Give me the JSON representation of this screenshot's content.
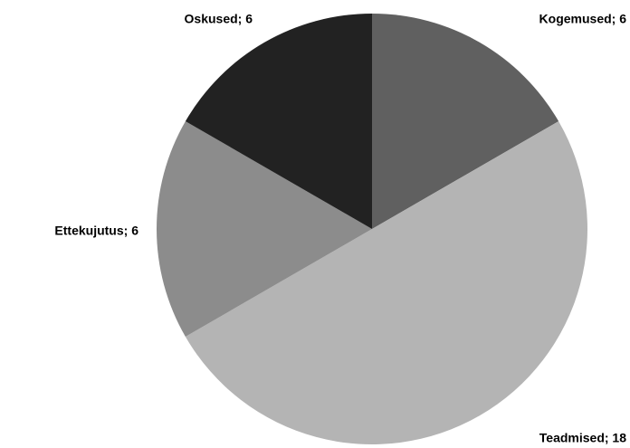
{
  "chart_data": {
    "type": "pie",
    "values": [
      6,
      18,
      6,
      6
    ],
    "value_labels": [
      "Kogemused; 6",
      "Teadmised; 18",
      "Ettekujutus; 6",
      "Oskused; 6"
    ],
    "colors": [
      "#606060",
      "#b4b4b4",
      "#8c8c8c",
      "#222222"
    ]
  }
}
